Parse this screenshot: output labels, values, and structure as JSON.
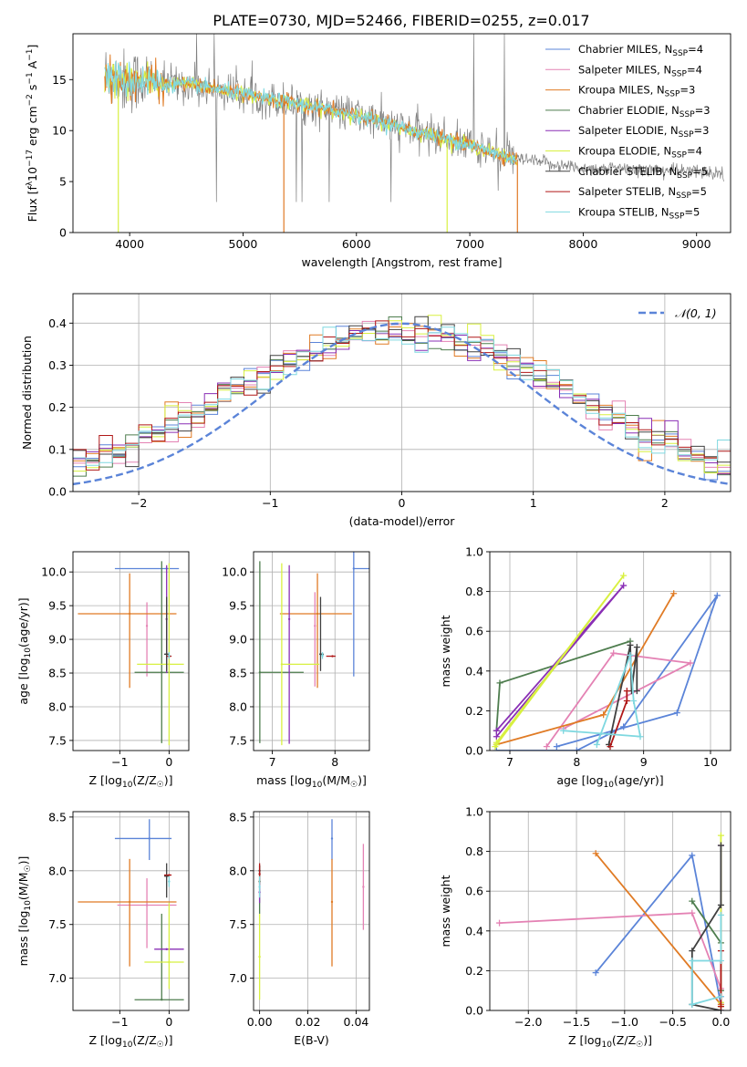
{
  "figure": {
    "title": "PLATE=0730, MJD=52466, FIBERID=0255, z=0.017"
  },
  "colors": {
    "chabrier_miles": "#5b84d8",
    "salpeter_miles": "#e482b4",
    "kroupa_miles": "#e07b25",
    "chabrier_elodie": "#4e7d4e",
    "salpeter_elodie": "#8a2fb5",
    "kroupa_elodie": "#d8f040",
    "chabrier_stelib": "#404040",
    "salpeter_stelib": "#b01818",
    "kroupa_stelib": "#7fd8e0",
    "data": "#808080",
    "gauss": "#5b84d8"
  },
  "legend": [
    {
      "key": "chabrier_miles",
      "text": "Chabrier MILES, N",
      "sub": "SSP",
      "tail": "=4"
    },
    {
      "key": "salpeter_miles",
      "text": "Salpeter MILES, N",
      "sub": "SSP",
      "tail": "=4"
    },
    {
      "key": "kroupa_miles",
      "text": "Kroupa MILES, N",
      "sub": "SSP",
      "tail": "=3"
    },
    {
      "key": "chabrier_elodie",
      "text": "Chabrier ELODIE, N",
      "sub": "SSP",
      "tail": "=3"
    },
    {
      "key": "salpeter_elodie",
      "text": "Salpeter ELODIE, N",
      "sub": "SSP",
      "tail": "=3"
    },
    {
      "key": "kroupa_elodie",
      "text": "Kroupa ELODIE, N",
      "sub": "SSP",
      "tail": "=4"
    },
    {
      "key": "chabrier_stelib",
      "text": "Chabrier STELIB, N",
      "sub": "SSP",
      "tail": "=5"
    },
    {
      "key": "salpeter_stelib",
      "text": "Salpeter STELIB, N",
      "sub": "SSP",
      "tail": "=5"
    },
    {
      "key": "kroupa_stelib",
      "text": "Kroupa STELIB, N",
      "sub": "SSP",
      "tail": "=5"
    }
  ],
  "chart_data": [
    {
      "type": "line",
      "id": "spectrum",
      "title": "PLATE=0730, MJD=52466, FIBERID=0255, z=0.017",
      "xlabel": "wavelength [Angstrom, rest frame]",
      "ylabel_parts": [
        "Flux [f",
        "λ",
        "10",
        "−17",
        " erg cm",
        "−2",
        " s",
        "−1",
        " A",
        "−1",
        "]"
      ],
      "xlim": [
        3500,
        9300
      ],
      "ylim": [
        0,
        19.5
      ],
      "xticks": [
        4000,
        5000,
        6000,
        7000,
        8000,
        9000
      ],
      "yticks": [
        0,
        5,
        10,
        15
      ],
      "continuum": [
        [
          3780,
          15.5
        ],
        [
          3950,
          14.8
        ],
        [
          4100,
          15.0
        ],
        [
          4300,
          14.5
        ],
        [
          4500,
          14.6
        ],
        [
          5000,
          13.6
        ],
        [
          5500,
          12.6
        ],
        [
          6000,
          11.5
        ],
        [
          6500,
          10.0
        ],
        [
          7000,
          8.6
        ],
        [
          7400,
          7.2
        ],
        [
          8000,
          6.3
        ],
        [
          8500,
          6.2
        ],
        [
          9000,
          6.0
        ],
        [
          9240,
          5.8
        ]
      ]
    },
    {
      "type": "line",
      "id": "residual_histogram",
      "xlabel": "(data-model)/error",
      "ylabel": "Normed distribution",
      "xlim": [
        -2.5,
        2.5
      ],
      "ylim": [
        0,
        0.47
      ],
      "xticks": [
        -2,
        -1,
        0,
        1,
        2
      ],
      "yticks": [
        0.0,
        0.1,
        0.2,
        0.3,
        0.4
      ],
      "bin_width": 0.1,
      "gauss_label_parts": [
        "𝒩",
        "(0, 1)"
      ]
    },
    {
      "type": "scatter",
      "id": "age_vs_Z",
      "xlabel_parts": [
        "Z [log",
        "10",
        "(Z/Z",
        "☉",
        ")]"
      ],
      "ylabel_parts": [
        "age  [log",
        "10",
        "(age/yr)]"
      ],
      "xlim": [
        -1.95,
        0.4
      ],
      "ylim": [
        7.35,
        10.3
      ],
      "xticks": [
        -1,
        0
      ],
      "yticks": [
        7.5,
        8.0,
        8.5,
        9.0,
        9.5,
        10.0
      ],
      "points": [
        {
          "model": "chabrier_miles",
          "x": -0.05,
          "y": 10.05,
          "xerr": [
            1.05,
            0.25
          ],
          "yerr": [
            0,
            0
          ]
        },
        {
          "model": "salpeter_miles",
          "x": -0.45,
          "y": 9.2,
          "xerr": [
            0,
            0
          ],
          "yerr": [
            0.75,
            0.35
          ]
        },
        {
          "model": "kroupa_miles",
          "x": -0.8,
          "y": 9.38,
          "xerr": [
            1.05,
            0.95
          ],
          "yerr": [
            1.1,
            0.6
          ]
        },
        {
          "model": "chabrier_elodie",
          "x": -0.15,
          "y": 8.51,
          "xerr": [
            0.55,
            0.45
          ],
          "yerr": [
            1.05,
            1.65
          ]
        },
        {
          "model": "salpeter_elodie",
          "x": -0.05,
          "y": 9.3,
          "xerr": [
            0,
            0
          ],
          "yerr": [
            0.8,
            0.8
          ]
        },
        {
          "model": "kroupa_elodie",
          "x": 0.0,
          "y": 8.63,
          "xerr": [
            0.65,
            0.3
          ],
          "yerr": [
            1.2,
            1.5
          ]
        },
        {
          "model": "chabrier_stelib",
          "x": -0.05,
          "y": 8.78,
          "xerr": [
            0.05,
            0.05
          ],
          "yerr": [
            0.25,
            0.85
          ]
        },
        {
          "model": "salpeter_stelib",
          "x": 0.0,
          "y": 8.75,
          "xerr": [
            0.05,
            0.05
          ],
          "yerr": [
            0,
            0
          ]
        },
        {
          "model": "kroupa_stelib",
          "x": 0.0,
          "y": 8.76,
          "xerr": [
            0.02,
            0.02
          ],
          "yerr": [
            0.05,
            0.05
          ]
        }
      ]
    },
    {
      "type": "scatter",
      "id": "age_vs_mass",
      "xlabel_parts": [
        "mass [log",
        "10",
        "(M/M",
        "☉",
        ")]"
      ],
      "ylabel_parts": [],
      "xlim": [
        6.7,
        8.55
      ],
      "ylim": [
        7.35,
        10.3
      ],
      "xticks": [
        7,
        8
      ],
      "yticks": [
        7.5,
        8.0,
        8.5,
        9.0,
        9.5,
        10.0
      ],
      "points": [
        {
          "model": "chabrier_miles",
          "x": 8.3,
          "y": 10.05,
          "xerr": [
            0,
            0.25
          ],
          "yerr": [
            1.6,
            0.3
          ]
        },
        {
          "model": "salpeter_miles",
          "x": 7.68,
          "y": 9.2,
          "xerr": [
            0,
            0
          ],
          "yerr": [
            0.9,
            0.5
          ]
        },
        {
          "model": "kroupa_miles",
          "x": 7.72,
          "y": 9.38,
          "xerr": [
            0.6,
            0.55
          ],
          "yerr": [
            1.1,
            0.6
          ]
        },
        {
          "model": "chabrier_elodie",
          "x": 6.8,
          "y": 8.51,
          "xerr": [
            0,
            0.7
          ],
          "yerr": [
            1.05,
            1.65
          ]
        },
        {
          "model": "salpeter_elodie",
          "x": 7.27,
          "y": 9.3,
          "xerr": [
            0,
            0
          ],
          "yerr": [
            1.85,
            0.8
          ]
        },
        {
          "model": "kroupa_elodie",
          "x": 7.15,
          "y": 8.63,
          "xerr": [
            0,
            0.6
          ],
          "yerr": [
            1.2,
            1.5
          ]
        },
        {
          "model": "chabrier_stelib",
          "x": 7.77,
          "y": 8.78,
          "xerr": [
            0.02,
            0.05
          ],
          "yerr": [
            0.25,
            0.85
          ]
        },
        {
          "model": "salpeter_stelib",
          "x": 7.96,
          "y": 8.75,
          "xerr": [
            0.1,
            0.05
          ],
          "yerr": [
            0,
            0
          ]
        },
        {
          "model": "kroupa_stelib",
          "x": 7.8,
          "y": 8.76,
          "xerr": [
            0.02,
            0.02
          ],
          "yerr": [
            0.05,
            0.05
          ]
        }
      ]
    },
    {
      "type": "line",
      "id": "massweight_vs_age",
      "xlabel_parts": [
        "age  [log",
        "10",
        "(age/yr)]"
      ],
      "ylabel": "mass weight",
      "xlim": [
        6.7,
        10.3
      ],
      "ylim": [
        0,
        1.0
      ],
      "xticks": [
        7,
        8,
        9,
        10
      ],
      "yticks": [
        0.0,
        0.2,
        0.4,
        0.6,
        0.8,
        1.0
      ],
      "series": [
        {
          "model": "chabrier_miles",
          "x": [
            7.7,
            9.5,
            10.1,
            8.7,
            8.0,
            6.8
          ],
          "y": [
            0.02,
            0.19,
            0.78,
            0.12,
            0.0,
            0.0
          ]
        },
        {
          "model": "salpeter_miles",
          "x": [
            7.55,
            8.55,
            9.7,
            7.8
          ],
          "y": [
            0.02,
            0.49,
            0.44,
            0.11
          ]
        },
        {
          "model": "kroupa_miles",
          "x": [
            6.8,
            8.4,
            9.45
          ],
          "y": [
            0.03,
            0.18,
            0.79
          ]
        },
        {
          "model": "chabrier_elodie",
          "x": [
            6.8,
            6.85,
            8.8
          ],
          "y": [
            0.1,
            0.34,
            0.55
          ]
        },
        {
          "model": "salpeter_elodie",
          "x": [
            6.8,
            8.7,
            6.8
          ],
          "y": [
            0.07,
            0.83,
            0.1
          ]
        },
        {
          "model": "kroupa_elodie",
          "x": [
            6.78,
            8.7,
            6.8,
            6.8
          ],
          "y": [
            0.02,
            0.88,
            0.04,
            0.03
          ]
        },
        {
          "model": "chabrier_stelib",
          "x": [
            8.48,
            8.8,
            8.82,
            8.9,
            8.9
          ],
          "y": [
            0.03,
            0.53,
            0.3,
            0.52,
            0.3
          ]
        },
        {
          "model": "salpeter_stelib",
          "x": [
            8.5,
            8.75,
            8.75
          ],
          "y": [
            0.02,
            0.25,
            0.3
          ]
        },
        {
          "model": "kroupa_stelib",
          "x": [
            8.3,
            8.8,
            8.85,
            8.95,
            7.8
          ],
          "y": [
            0.03,
            0.48,
            0.25,
            0.07,
            0.1
          ]
        }
      ]
    },
    {
      "type": "scatter",
      "id": "mass_vs_Z",
      "xlabel_parts": [
        "Z [log",
        "10",
        "(Z/Z",
        "☉",
        ")]"
      ],
      "ylabel_parts": [
        "mass [log",
        "10",
        "(M/M",
        "☉",
        ")]"
      ],
      "xlim": [
        -1.95,
        0.4
      ],
      "ylim": [
        6.7,
        8.55
      ],
      "xticks": [
        -1,
        0
      ],
      "yticks": [
        7.0,
        7.5,
        8.0,
        8.5
      ],
      "points": [
        {
          "model": "chabrier_miles",
          "x": -0.4,
          "y": 8.3,
          "xerr": [
            0.7,
            0.45
          ],
          "yerr": [
            0.2,
            0.18
          ]
        },
        {
          "model": "salpeter_miles",
          "x": -0.45,
          "y": 7.68,
          "xerr": [
            0.6,
            0.6
          ],
          "yerr": [
            0.4,
            0.25
          ]
        },
        {
          "model": "kroupa_miles",
          "x": -0.8,
          "y": 7.71,
          "xerr": [
            1.05,
            0.95
          ],
          "yerr": [
            0.6,
            0.4
          ]
        },
        {
          "model": "chabrier_elodie",
          "x": -0.15,
          "y": 6.8,
          "xerr": [
            0.55,
            0.45
          ],
          "yerr": [
            0,
            0.8
          ]
        },
        {
          "model": "salpeter_elodie",
          "x": -0.05,
          "y": 7.27,
          "xerr": [
            0.25,
            0.35
          ],
          "yerr": [
            0,
            0
          ]
        },
        {
          "model": "kroupa_elodie",
          "x": 0.0,
          "y": 7.15,
          "xerr": [
            0.5,
            0.3
          ],
          "yerr": [
            0.25,
            0.55
          ]
        },
        {
          "model": "chabrier_stelib",
          "x": -0.05,
          "y": 7.95,
          "xerr": [
            0.05,
            0.05
          ],
          "yerr": [
            0.2,
            0.12
          ]
        },
        {
          "model": "salpeter_stelib",
          "x": 0.0,
          "y": 7.96,
          "xerr": [
            0.1,
            0.05
          ],
          "yerr": [
            0,
            0
          ]
        },
        {
          "model": "kroupa_stelib",
          "x": 0.0,
          "y": 7.9,
          "xerr": [
            0.02,
            0.02
          ],
          "yerr": [
            0.05,
            0.05
          ]
        }
      ]
    },
    {
      "type": "scatter",
      "id": "mass_vs_ebv",
      "xlabel": "E(B-V)",
      "ylabel": "",
      "xlim": [
        -0.0025,
        0.0455
      ],
      "ylim": [
        6.7,
        8.55
      ],
      "xticks": [
        0.0,
        0.02,
        0.04
      ],
      "yticks": [
        7.0,
        7.5,
        8.0,
        8.5
      ],
      "points": [
        {
          "model": "chabrier_miles",
          "x": 0.03,
          "y": 8.3,
          "xerr": [
            0,
            0
          ],
          "yerr": [
            0.2,
            0.18
          ]
        },
        {
          "model": "salpeter_miles",
          "x": 0.043,
          "y": 7.85,
          "xerr": [
            0,
            0
          ],
          "yerr": [
            0.4,
            0.4
          ]
        },
        {
          "model": "kroupa_miles",
          "x": 0.03,
          "y": 7.71,
          "xerr": [
            0,
            0
          ],
          "yerr": [
            0.6,
            0.4
          ]
        },
        {
          "model": "chabrier_elodie",
          "x": 0.0,
          "y": 7.9,
          "xerr": [
            0,
            0
          ],
          "yerr": [
            0.3,
            0.15
          ]
        },
        {
          "model": "salpeter_elodie",
          "x": 0.0,
          "y": 7.8,
          "xerr": [
            0,
            0
          ],
          "yerr": [
            0.1,
            0.1
          ]
        },
        {
          "model": "kroupa_elodie",
          "x": 0.0,
          "y": 7.2,
          "xerr": [
            0,
            0
          ],
          "yerr": [
            0.4,
            0.4
          ]
        },
        {
          "model": "chabrier_stelib",
          "x": 0.0,
          "y": 8.0,
          "xerr": [
            0,
            0
          ],
          "yerr": [
            0.05,
            0.05
          ]
        },
        {
          "model": "salpeter_stelib",
          "x": 0.0,
          "y": 7.97,
          "xerr": [
            0,
            0
          ],
          "yerr": [
            0.1,
            0.1
          ]
        },
        {
          "model": "kroupa_stelib",
          "x": 0.0,
          "y": 7.85,
          "xerr": [
            0,
            0
          ],
          "yerr": [
            0.1,
            0.1
          ]
        }
      ]
    },
    {
      "type": "line",
      "id": "massweight_vs_Z",
      "xlabel_parts": [
        "Z [log",
        "10",
        "(Z/Z",
        "☉",
        ")]"
      ],
      "ylabel": "mass weight",
      "xlim": [
        -2.4,
        0.1
      ],
      "ylim": [
        0,
        1.0
      ],
      "xticks": [
        -2.0,
        -1.5,
        -1.0,
        -0.5,
        0.0
      ],
      "yticks": [
        0.0,
        0.2,
        0.4,
        0.6,
        0.8,
        1.0
      ],
      "series": [
        {
          "model": "chabrier_miles",
          "x": [
            -1.3,
            -0.3,
            0.0,
            0.0
          ],
          "y": [
            0.19,
            0.78,
            0.03,
            0.0
          ]
        },
        {
          "model": "salpeter_miles",
          "x": [
            -2.3,
            -0.3,
            0.0,
            0.0
          ],
          "y": [
            0.44,
            0.49,
            0.11,
            0.0
          ]
        },
        {
          "model": "kroupa_miles",
          "x": [
            -1.3,
            0.0,
            0.0
          ],
          "y": [
            0.79,
            0.03,
            0.02
          ]
        },
        {
          "model": "chabrier_elodie",
          "x": [
            -0.3,
            0.0,
            0.0
          ],
          "y": [
            0.55,
            0.34,
            0.1
          ]
        },
        {
          "model": "salpeter_elodie",
          "x": [
            0.0,
            0.0
          ],
          "y": [
            0.83,
            0.07
          ]
        },
        {
          "model": "kroupa_elodie",
          "x": [
            0.0,
            0.0,
            0.0
          ],
          "y": [
            0.88,
            0.04,
            0.02
          ]
        },
        {
          "model": "chabrier_stelib",
          "x": [
            0.0,
            0.0,
            -0.3,
            -0.3,
            0.0
          ],
          "y": [
            0.83,
            0.53,
            0.3,
            0.03,
            0.0
          ]
        },
        {
          "model": "salpeter_stelib",
          "x": [
            0.0,
            0.0
          ],
          "y": [
            0.3,
            0.02
          ]
        },
        {
          "model": "kroupa_stelib",
          "x": [
            0.0,
            0.0,
            -0.3,
            -0.3,
            0.0
          ],
          "y": [
            0.48,
            0.25,
            0.25,
            0.03,
            0.07
          ]
        }
      ]
    }
  ]
}
